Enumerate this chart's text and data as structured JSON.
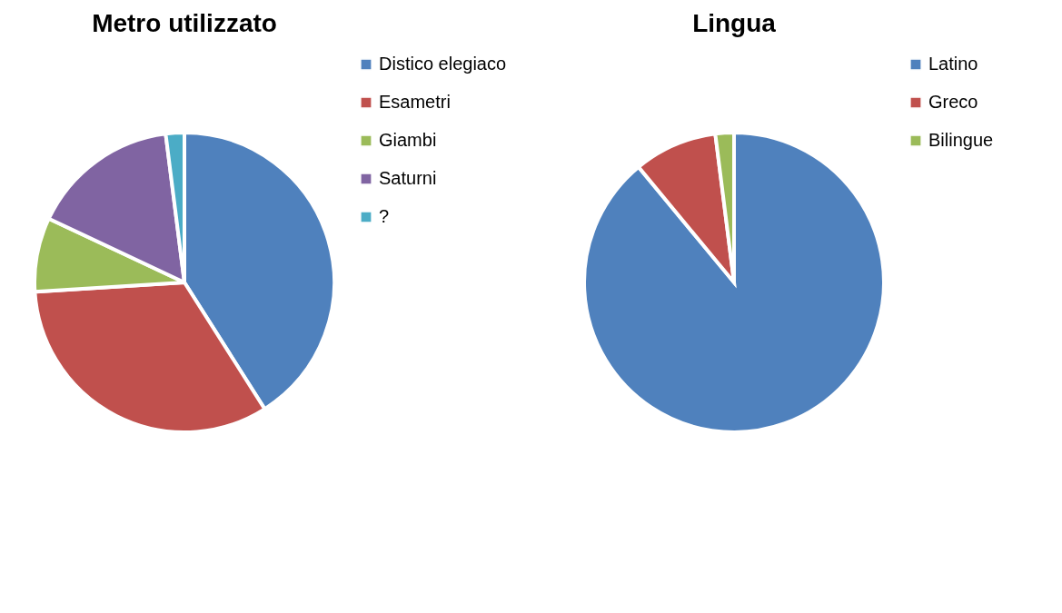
{
  "chart_data": [
    {
      "type": "pie",
      "title": "Metro utilizzato",
      "categories": [
        "Distico elegiaco",
        "Esametri",
        "Giambi",
        "Saturni",
        "?"
      ],
      "values": [
        41,
        33,
        8,
        16,
        2
      ],
      "colors": [
        "#4f81bd",
        "#c0504d",
        "#9bbb59",
        "#8064a2",
        "#4bacc6"
      ],
      "legend": "right"
    },
    {
      "type": "pie",
      "title": "Lingua",
      "categories": [
        "Latino",
        "Greco",
        "Bilingue"
      ],
      "values": [
        89,
        9,
        2
      ],
      "colors": [
        "#4f81bd",
        "#c0504d",
        "#9bbb59"
      ],
      "legend": "right"
    }
  ]
}
